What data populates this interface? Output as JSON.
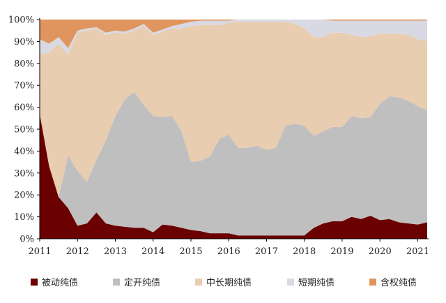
{
  "chart_data": {
    "type": "area",
    "stacked": "percent",
    "x": [
      2011.0,
      2011.25,
      2011.5,
      2011.75,
      2012.0,
      2012.25,
      2012.5,
      2012.75,
      2013.0,
      2013.25,
      2013.5,
      2013.75,
      2014.0,
      2014.25,
      2014.5,
      2014.75,
      2015.0,
      2015.25,
      2015.5,
      2015.75,
      2016.0,
      2016.25,
      2016.5,
      2016.75,
      2017.0,
      2017.25,
      2017.5,
      2017.75,
      2018.0,
      2018.25,
      2018.5,
      2018.75,
      2019.0,
      2019.25,
      2019.5,
      2019.75,
      2020.0,
      2020.25,
      2020.5,
      2020.75,
      2021.0,
      2021.25
    ],
    "xticks": [
      "2011",
      "2012",
      "2013",
      "2014",
      "2015",
      "2016",
      "2017",
      "2018",
      "2019",
      "2020",
      "2021"
    ],
    "yticks": [
      "0%",
      "10%",
      "20%",
      "30%",
      "40%",
      "50%",
      "60%",
      "70%",
      "80%",
      "90%",
      "100%"
    ],
    "ylim": [
      0,
      100
    ],
    "series": [
      {
        "name": "被动纯债",
        "color": "#6b0000",
        "values": [
          57,
          33,
          19,
          14,
          6,
          7,
          12,
          7,
          6,
          5.5,
          5,
          5,
          3,
          6.5,
          6,
          5,
          4,
          3.5,
          2.5,
          2.5,
          2.5,
          1.5,
          1.5,
          1.5,
          1.5,
          1.5,
          1.5,
          1.5,
          1.5,
          5,
          7,
          8,
          8,
          10,
          9,
          10.5,
          8.5,
          9,
          7.5,
          7,
          6.5,
          7.5
        ]
      },
      {
        "name": "定开纯债",
        "color": "#bfbfbf",
        "values": [
          0,
          0,
          0,
          24,
          25,
          19,
          24,
          38,
          50,
          58,
          62,
          56,
          53,
          49,
          50,
          44,
          31,
          32,
          35,
          43,
          45,
          40,
          40,
          41,
          39,
          40,
          50,
          51,
          50,
          42,
          42,
          43,
          43,
          46,
          46,
          45,
          53,
          56,
          57,
          56,
          54,
          51
        ]
      },
      {
        "name": "中长期纯债",
        "color": "#e8cdb0",
        "values": [
          27,
          52,
          70,
          46,
          63,
          69,
          60,
          48,
          38,
          30,
          28,
          36,
          37,
          39,
          40,
          47,
          62,
          62,
          60,
          52,
          51,
          57.5,
          57.5,
          56.5,
          58.5,
          57.5,
          47.5,
          45.5,
          44.5,
          45,
          43,
          43,
          43,
          37,
          37,
          37,
          32,
          28.5,
          29,
          30,
          30.5,
          32
        ]
      },
      {
        "name": "短期纯债",
        "color": "#d9d9e3",
        "values": [
          7,
          4,
          3,
          3,
          1,
          1,
          0.5,
          1,
          1,
          1,
          1,
          1,
          1,
          1,
          1,
          2,
          2,
          2,
          2,
          2,
          1,
          1,
          1,
          1,
          1,
          1,
          1,
          2,
          4,
          8,
          8,
          5.5,
          5.5,
          6.5,
          7.5,
          7,
          6,
          6,
          6,
          6.5,
          8.5,
          9
        ]
      },
      {
        "name": "含权纯债",
        "color": "#e0955e",
        "values": [
          9,
          11,
          8,
          13,
          5,
          4,
          3.5,
          6,
          5,
          5.5,
          4,
          2,
          6,
          4.5,
          3,
          2,
          1,
          0.5,
          0.5,
          0.5,
          0.5,
          0,
          0,
          0,
          0,
          0,
          0,
          0,
          0,
          0,
          0,
          0.5,
          0.5,
          0.5,
          0.5,
          0.5,
          0.5,
          0.5,
          0.5,
          0.5,
          0.5,
          0.5
        ]
      }
    ],
    "title": "",
    "xlabel": "",
    "ylabel": "",
    "grid": false,
    "legend_position": "bottom"
  }
}
